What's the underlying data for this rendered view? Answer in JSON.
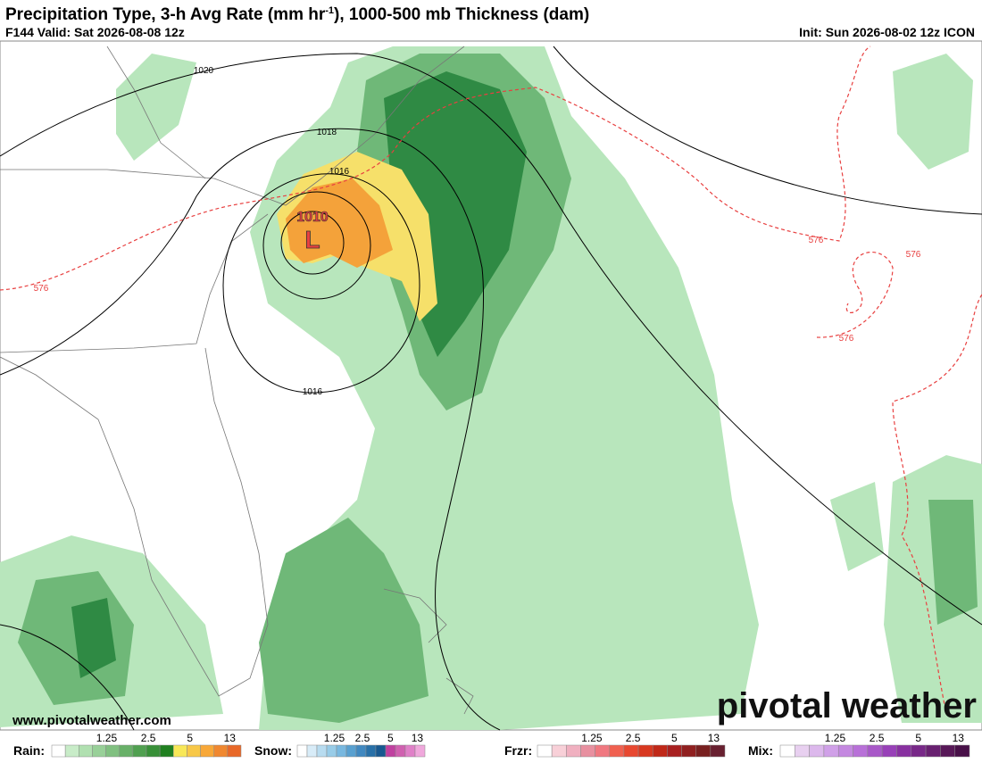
{
  "header": {
    "title": {
      "main": "Precipitation Type, 3-h Avg Rate (mm hr",
      "sup": "-1",
      "rest": "), 1000-500 mb Thickness (dam)"
    },
    "valid": "F144 Valid: Sat 2026-08-08 12z",
    "init": "Init: Sun 2026-08-02 12z ICON"
  },
  "map": {
    "isobars": [
      1020,
      1018,
      1016,
      1016
    ],
    "low": {
      "pressure": 1010,
      "symbol": "L"
    },
    "thickness": [
      576,
      576,
      576,
      576
    ]
  },
  "footer": {
    "website": "www.pivotalweather.com",
    "brand": "pivotal weather"
  },
  "legend": [
    {
      "name": "Rain:",
      "ticks": [
        1.25,
        2.5,
        5,
        13
      ],
      "colors": [
        "#ffffff",
        "#c8ecc8",
        "#b0e0b0",
        "#98d098",
        "#80c080",
        "#68b068",
        "#50a050",
        "#389038",
        "#208020",
        "#f8e858",
        "#f8c848",
        "#f8a838",
        "#f08830",
        "#e86828"
      ]
    },
    {
      "name": "Snow:",
      "ticks": [
        1.25,
        2.5,
        5,
        13
      ],
      "colors": [
        "#ffffff",
        "#d8ecf8",
        "#b8dcf0",
        "#98cce8",
        "#78b8e0",
        "#58a0d0",
        "#4088c0",
        "#2870a8",
        "#185890",
        "#c040a0",
        "#d060b0",
        "#e080c8",
        "#f0a8dc"
      ]
    },
    {
      "name": "Frzr:",
      "ticks": [
        1.25,
        2.5,
        5,
        13
      ],
      "colors": [
        "#ffffff",
        "#f8d0d8",
        "#f0b0c0",
        "#e890a0",
        "#f07880",
        "#f06050",
        "#e84830",
        "#d83820",
        "#c02818",
        "#a82020",
        "#902020",
        "#782020",
        "#682030"
      ]
    },
    {
      "name": "Mix:",
      "ticks": [
        1.25,
        2.5,
        5,
        13
      ],
      "colors": [
        "#ffffff",
        "#e8d0f0",
        "#dcb8ec",
        "#d0a0e8",
        "#c488e0",
        "#b870d8",
        "#a858c8",
        "#9840b8",
        "#8830a0",
        "#782888",
        "#682070",
        "#581858",
        "#481048"
      ]
    }
  ]
}
